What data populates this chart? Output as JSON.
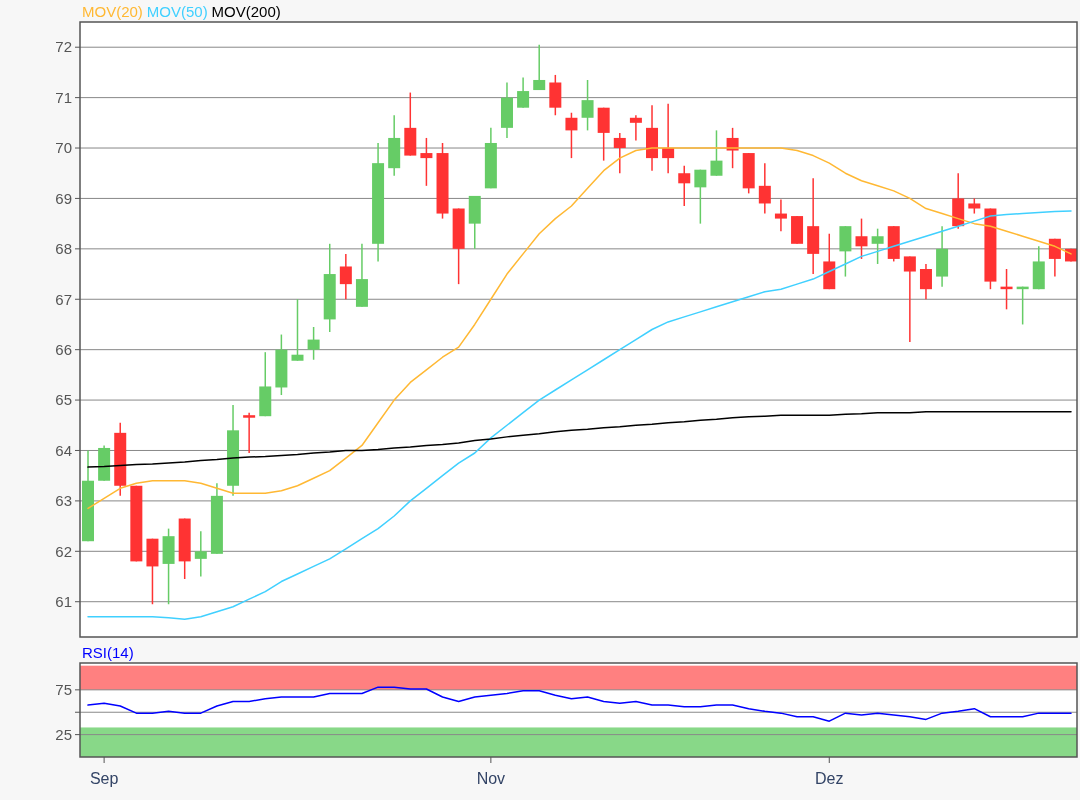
{
  "chart_data": [
    {
      "type": "candlestick",
      "legend": "top left",
      "grid": "y",
      "tick_labels": "y",
      "categories": [
        null,
        null,
        null,
        null,
        null,
        null,
        null,
        null,
        null,
        null,
        null,
        null,
        null,
        null,
        null,
        null,
        null,
        null,
        null,
        null,
        null,
        null,
        null,
        null,
        null,
        null,
        null,
        null,
        null,
        null,
        null,
        null,
        null,
        null,
        null,
        null,
        null,
        null,
        null,
        null,
        null,
        null,
        null,
        null,
        null,
        null,
        null,
        null,
        null,
        null,
        null,
        null,
        null,
        null,
        null,
        null,
        null,
        null,
        null,
        null,
        null,
        null
      ],
      "ohlc": [
        [
          62.2,
          64.0,
          62.2,
          63.4
        ],
        [
          63.4,
          64.1,
          63.4,
          64.05
        ],
        [
          64.35,
          64.55,
          63.1,
          63.3
        ],
        [
          63.3,
          63.3,
          61.8,
          61.8
        ],
        [
          62.25,
          62.25,
          60.95,
          61.7
        ],
        [
          61.75,
          62.45,
          60.95,
          62.3
        ],
        [
          62.65,
          62.65,
          61.45,
          61.8
        ],
        [
          61.85,
          62.4,
          61.5,
          62.0
        ],
        [
          61.95,
          63.35,
          61.95,
          63.1
        ],
        [
          63.3,
          64.9,
          63.1,
          64.4
        ],
        [
          64.7,
          64.75,
          63.95,
          64.65
        ],
        [
          64.68,
          65.95,
          64.68,
          65.27
        ],
        [
          65.25,
          66.3,
          65.1,
          66.0
        ],
        [
          65.78,
          67.0,
          65.78,
          65.9
        ],
        [
          66.0,
          66.45,
          65.8,
          66.2
        ],
        [
          66.6,
          68.1,
          66.35,
          67.5
        ],
        [
          67.65,
          67.9,
          67.0,
          67.3
        ],
        [
          66.85,
          68.1,
          66.85,
          67.4
        ],
        [
          68.1,
          70.1,
          67.75,
          69.7
        ],
        [
          69.6,
          70.65,
          69.45,
          70.2
        ],
        [
          70.4,
          71.1,
          69.85,
          69.85
        ],
        [
          69.9,
          70.2,
          69.25,
          69.8
        ],
        [
          69.9,
          70.1,
          68.6,
          68.7
        ],
        [
          68.8,
          68.8,
          67.3,
          68.0
        ],
        [
          68.5,
          69.05,
          68.0,
          69.05
        ],
        [
          69.2,
          70.4,
          69.2,
          70.1
        ],
        [
          70.4,
          71.3,
          70.2,
          71.0
        ],
        [
          70.8,
          71.4,
          70.8,
          71.13
        ],
        [
          71.15,
          72.05,
          71.15,
          71.35
        ],
        [
          71.3,
          71.45,
          70.65,
          70.8
        ],
        [
          70.6,
          70.7,
          69.8,
          70.35
        ],
        [
          70.6,
          71.35,
          70.35,
          70.95
        ],
        [
          70.8,
          70.8,
          69.75,
          70.3
        ],
        [
          70.2,
          70.3,
          69.5,
          70.0
        ],
        [
          70.6,
          70.65,
          70.15,
          70.5
        ],
        [
          70.4,
          70.85,
          69.55,
          69.8
        ],
        [
          70.0,
          70.88,
          69.5,
          69.8
        ],
        [
          69.5,
          69.65,
          68.85,
          69.3
        ],
        [
          69.22,
          69.57,
          68.5,
          69.57
        ],
        [
          69.45,
          70.35,
          69.45,
          69.75
        ],
        [
          70.2,
          70.4,
          69.6,
          69.95
        ],
        [
          69.9,
          69.9,
          69.1,
          69.2
        ],
        [
          69.25,
          69.7,
          68.7,
          68.9
        ],
        [
          68.7,
          68.98,
          68.35,
          68.6
        ],
        [
          68.65,
          68.65,
          68.1,
          68.1
        ],
        [
          68.45,
          69.4,
          67.5,
          67.9
        ],
        [
          67.75,
          68.3,
          67.2,
          67.2
        ],
        [
          67.95,
          68.45,
          67.45,
          68.45
        ],
        [
          68.25,
          68.6,
          67.8,
          68.05
        ],
        [
          68.1,
          68.4,
          67.7,
          68.25
        ],
        [
          68.45,
          68.45,
          67.75,
          67.8
        ],
        [
          67.85,
          67.85,
          66.15,
          67.55
        ],
        [
          67.6,
          67.7,
          67.0,
          67.2
        ],
        [
          67.45,
          68.45,
          67.25,
          68.0
        ],
        [
          69.0,
          69.5,
          68.4,
          68.45
        ],
        [
          68.9,
          69.0,
          68.7,
          68.8
        ],
        [
          68.8,
          68.8,
          67.2,
          67.35
        ],
        [
          67.25,
          67.6,
          66.8,
          67.2
        ],
        [
          67.2,
          67.25,
          66.5,
          67.25
        ],
        [
          67.2,
          68.05,
          67.2,
          67.75
        ],
        [
          68.2,
          68.2,
          67.45,
          67.8
        ],
        [
          68.0,
          68.0,
          67.75,
          67.75
        ]
      ],
      "series": [
        {
          "type": "line",
          "name": "MOV(20)",
          "color": "#ffb833",
          "values": [
            62.85,
            63.05,
            63.25,
            63.35,
            63.4,
            63.4,
            63.4,
            63.35,
            63.25,
            63.15,
            63.15,
            63.15,
            63.2,
            63.3,
            63.45,
            63.6,
            63.85,
            64.1,
            64.55,
            65.0,
            65.35,
            65.6,
            65.85,
            66.05,
            66.5,
            67.0,
            67.5,
            67.9,
            68.3,
            68.6,
            68.85,
            69.2,
            69.55,
            69.8,
            69.95,
            70.0,
            70.0,
            70.0,
            70.0,
            70.0,
            70.0,
            70.0,
            70.0,
            70.0,
            69.95,
            69.85,
            69.7,
            69.5,
            69.35,
            69.25,
            69.15,
            69.0,
            68.8,
            68.7,
            68.6,
            68.5,
            68.45,
            68.35,
            68.25,
            68.15,
            68.05,
            67.9
          ]
        },
        {
          "type": "line",
          "name": "MOV(50)",
          "color": "#40d0ff",
          "values": [
            60.7,
            60.7,
            60.7,
            60.7,
            60.7,
            60.68,
            60.65,
            60.7,
            60.8,
            60.9,
            61.05,
            61.2,
            61.4,
            61.55,
            61.7,
            61.85,
            62.05,
            62.25,
            62.45,
            62.7,
            63.0,
            63.25,
            63.5,
            63.75,
            63.95,
            64.25,
            64.5,
            64.75,
            65.0,
            65.2,
            65.4,
            65.6,
            65.8,
            66.0,
            66.2,
            66.4,
            66.55,
            66.65,
            66.75,
            66.85,
            66.95,
            67.05,
            67.15,
            67.2,
            67.3,
            67.4,
            67.55,
            67.7,
            67.85,
            67.95,
            68.05,
            68.15,
            68.25,
            68.35,
            68.45,
            68.55,
            68.65,
            68.68,
            68.7,
            68.72,
            68.74,
            68.75
          ]
        },
        {
          "type": "line",
          "name": "MOV(200)",
          "color": "#000000",
          "values": [
            63.67,
            63.68,
            63.7,
            63.72,
            63.73,
            63.75,
            63.77,
            63.8,
            63.82,
            63.85,
            63.87,
            63.88,
            63.9,
            63.92,
            63.95,
            63.97,
            64.0,
            64.0,
            64.02,
            64.05,
            64.07,
            64.1,
            64.12,
            64.15,
            64.2,
            64.23,
            64.27,
            64.3,
            64.33,
            64.37,
            64.4,
            64.42,
            64.45,
            64.47,
            64.5,
            64.52,
            64.55,
            64.57,
            64.6,
            64.62,
            64.65,
            64.67,
            64.68,
            64.7,
            64.7,
            64.7,
            64.7,
            64.72,
            64.73,
            64.75,
            64.75,
            64.75,
            64.77,
            64.77,
            64.77,
            64.77,
            64.77,
            64.77,
            64.77,
            64.77,
            64.77,
            64.77
          ]
        }
      ],
      "ylim": [
        60.3,
        72.5
      ],
      "yticks": [
        61,
        62,
        63,
        64,
        65,
        66,
        67,
        68,
        69,
        70,
        71,
        72
      ]
    },
    {
      "type": "line",
      "legend": "top left",
      "grid": "y",
      "categories": [
        null,
        "Sep",
        null,
        null,
        null,
        null,
        null,
        null,
        null,
        null,
        null,
        null,
        null,
        null,
        null,
        null,
        null,
        null,
        null,
        null,
        null,
        null,
        null,
        null,
        null,
        "Nov",
        null,
        null,
        null,
        null,
        null,
        null,
        null,
        null,
        null,
        null,
        null,
        null,
        null,
        null,
        null,
        null,
        null,
        null,
        null,
        null,
        "Dez",
        null,
        null,
        null,
        null,
        null,
        null,
        null,
        null,
        null,
        null,
        null,
        null,
        null,
        null,
        null
      ],
      "series": [
        {
          "name": "RSI(14)",
          "color": "#0000ff",
          "values": [
            58,
            60,
            57,
            49,
            49,
            51,
            49,
            49,
            57,
            62,
            62,
            65,
            67,
            67,
            67,
            71,
            71,
            71,
            78,
            78,
            76,
            76,
            67,
            62,
            67,
            69,
            71,
            74,
            74,
            69,
            65,
            67,
            62,
            60,
            62,
            58,
            58,
            56,
            56,
            58,
            58,
            54,
            51,
            49,
            45,
            45,
            40,
            49,
            47,
            49,
            47,
            45,
            42,
            49,
            51,
            54,
            45,
            45,
            45,
            49,
            49,
            49
          ]
        }
      ],
      "bands": [
        {
          "axis": "y",
          "from": 75,
          "to": 102,
          "color": "#ff8080"
        },
        {
          "axis": "y",
          "from": 0,
          "to": 33,
          "color": "#88d888"
        }
      ],
      "ylim": [
        0,
        105
      ],
      "yticks": [
        25,
        {
          "value": 50,
          "label": null
        },
        75
      ]
    }
  ]
}
